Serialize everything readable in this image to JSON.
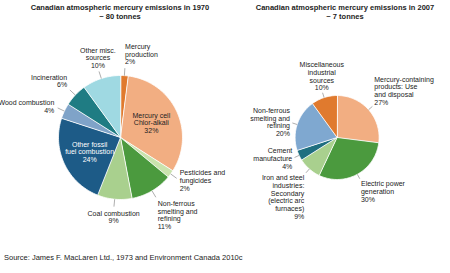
{
  "chart_data": [
    {
      "type": "pie",
      "title": "Canadian atmospheric mercury emissions in 1970",
      "subtitle": "~ 80 tonnes",
      "categories": [
        "Mercury production",
        "Mercury cell Chlor-alkali",
        "Pesticides and fungicides",
        "Non-ferrous smelting and refining",
        "Coal combustion",
        "Other fossil fuel combustion",
        "Wood combustion",
        "Incineration",
        "Other misc. sources"
      ],
      "values": [
        2,
        32,
        2,
        11,
        9,
        24,
        4,
        6,
        10
      ],
      "value_labels": [
        "2%",
        "32%",
        "2%",
        "11%",
        "9%",
        "24%",
        "4%",
        "6%",
        "10%"
      ],
      "colors": [
        "#e07a2e",
        "#f2ae82",
        "#c9e3ad",
        "#4b9a3e",
        "#a9d08e",
        "#1d5b87",
        "#7fa3c8",
        "#1f7c83",
        "#9fd9e2"
      ],
      "data_labels": true
    },
    {
      "type": "pie",
      "title": "Canadian atmospheric mercury emissions in 2007",
      "subtitle": "~ 7 tonnes",
      "categories": [
        "Mercury-containing products: Use and disposal",
        "Electric power generation",
        "Iron and steel industries: Secondary (electric arc furnaces)",
        "Cement manufacture",
        "Non-ferrous smelting and refining",
        "Miscellaneous industrial sources"
      ],
      "values": [
        27,
        30,
        9,
        4,
        20,
        10
      ],
      "value_labels": [
        "27%",
        "30%",
        "9%",
        "4%",
        "20%",
        "10%"
      ],
      "colors": [
        "#f2ae82",
        "#4b9a3e",
        "#a9d08e",
        "#1f6f80",
        "#7fa8d0",
        "#e07a2e"
      ],
      "data_labels": true
    }
  ],
  "caption": "Source: James F. MacLaren Ltd., 1973 and Environment Canada 2010c"
}
